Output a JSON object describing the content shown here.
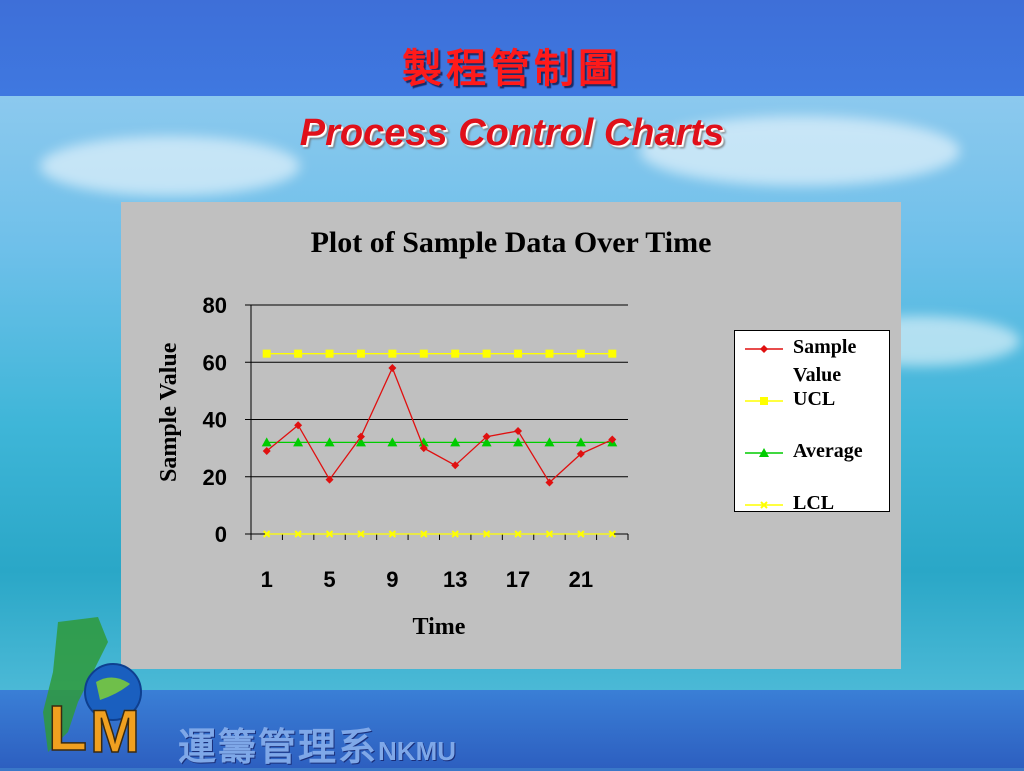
{
  "slide": {
    "title_zh": "製程管制圖",
    "title_en": "Process Control Charts",
    "footer_dept_zh": "運籌管理系",
    "footer_dept_en": "NKMU",
    "logo_text": "LM",
    "colors": {
      "title": "#ff1a1a",
      "top_band": "#3f78e0",
      "panel": "#c0c0c0"
    }
  },
  "chart_data": {
    "type": "line",
    "title": "Plot of Sample Data Over Time",
    "xlabel": "Time",
    "ylabel": "Sample Value",
    "x": [
      1,
      2,
      3,
      4,
      5,
      6,
      7,
      8,
      9,
      10,
      11,
      12
    ],
    "x_tick_labels": [
      "1",
      "5",
      "9",
      "13",
      "17",
      "21"
    ],
    "ylim": [
      0,
      80
    ],
    "y_ticks": [
      0,
      20,
      40,
      60,
      80
    ],
    "grid": true,
    "legend_position": "right",
    "series": [
      {
        "name": "Sample Value",
        "color": "#e01010",
        "marker": "diamond",
        "line": true,
        "values": [
          29,
          38,
          19,
          34,
          58,
          30,
          24,
          34,
          36,
          18,
          28,
          33
        ]
      },
      {
        "name": "UCL",
        "color": "#ffff00",
        "marker": "square",
        "line": true,
        "values": [
          63,
          63,
          63,
          63,
          63,
          63,
          63,
          63,
          63,
          63,
          63,
          63
        ]
      },
      {
        "name": "Average",
        "color": "#00cc00",
        "marker": "triangle",
        "line": true,
        "values": [
          32,
          32,
          32,
          32,
          32,
          32,
          32,
          32,
          32,
          32,
          32,
          32
        ]
      },
      {
        "name": "LCL",
        "color": "#ffff00",
        "marker": "x",
        "line": true,
        "values": [
          0,
          0,
          0,
          0,
          0,
          0,
          0,
          0,
          0,
          0,
          0,
          0
        ]
      }
    ]
  }
}
